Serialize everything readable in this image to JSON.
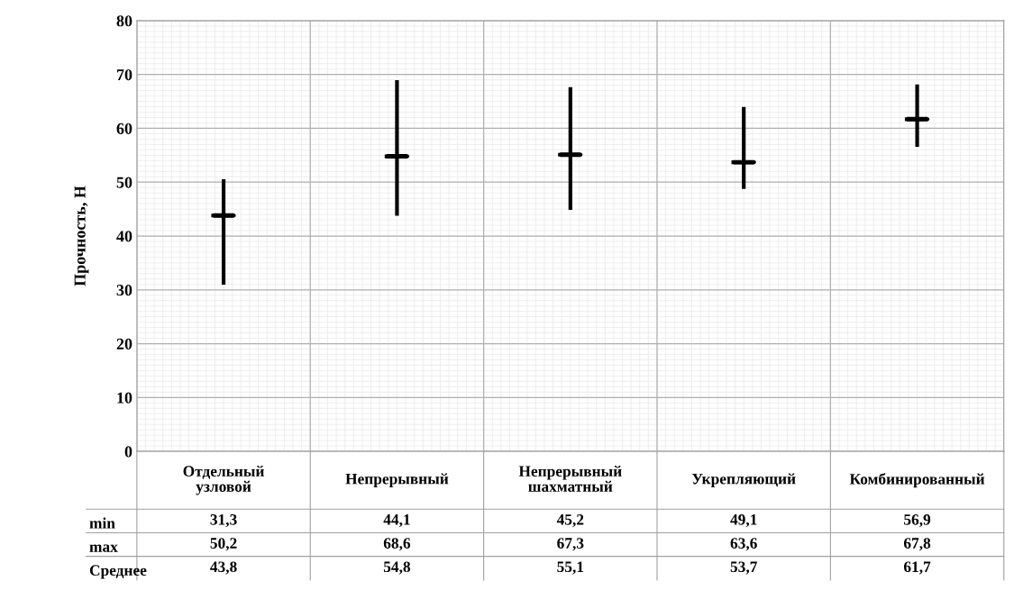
{
  "chart_data": {
    "type": "box",
    "ylabel": "Прочность, Н",
    "categories": [
      "Отдельный\nузловой",
      "Непрерывный",
      "Непрерывный\nшахматный",
      "Укрепляющий",
      "Комбинированный"
    ],
    "boxes": [
      {
        "low": 31.3,
        "q1": 43.8,
        "median": 43.8,
        "q3": 43.8,
        "high": 50.2
      },
      {
        "low": 44.1,
        "q1": 54.8,
        "median": 54.8,
        "q3": 54.8,
        "high": 68.6
      },
      {
        "low": 45.2,
        "q1": 55.1,
        "median": 55.1,
        "q3": 55.1,
        "high": 67.3
      },
      {
        "low": 49.1,
        "q1": 53.7,
        "median": 53.7,
        "q3": 53.7,
        "high": 63.6
      },
      {
        "low": 56.9,
        "q1": 61.7,
        "median": 61.7,
        "q3": 61.7,
        "high": 67.8
      }
    ],
    "color": "#000000",
    "annotations": [
      "min",
      "31,3",
      "44,1",
      "45,2",
      "49,1",
      "56,9",
      "max",
      "50,2",
      "68,6",
      "67,3",
      "63,6",
      "67,8",
      "Среднее",
      "43,8",
      "54,8",
      "55,1",
      "53,7",
      "61,7"
    ],
    "ylim": [
      0,
      80
    ],
    "yticks": [
      0,
      10,
      20,
      30,
      40,
      50,
      60,
      70,
      80
    ],
    "grid": true
  }
}
